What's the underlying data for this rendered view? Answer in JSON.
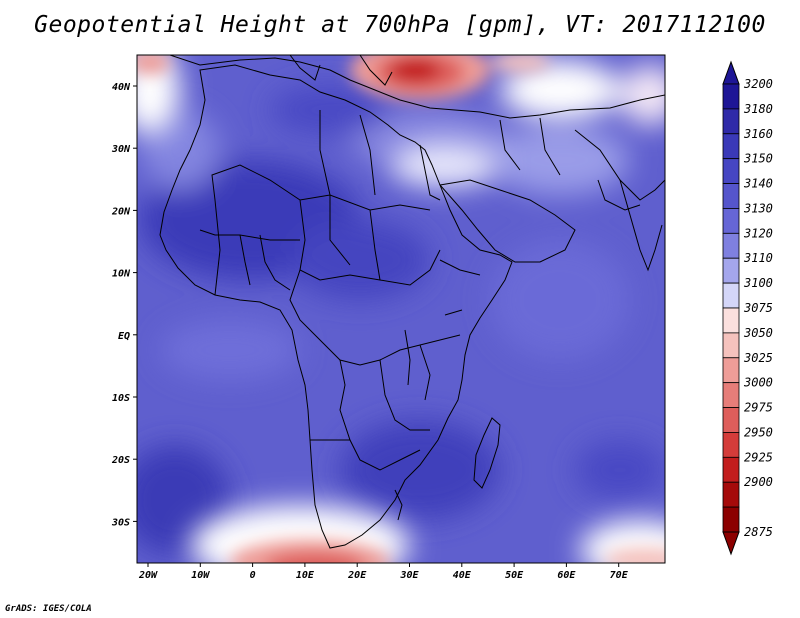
{
  "title": "Geopotential Height at 700hPa [gpm], VT: 2017112100",
  "credit": "GrADS: IGES/COLA",
  "map": {
    "region": "Africa",
    "lon_ticks": [
      "20W",
      "10W",
      "0",
      "10E",
      "20E",
      "30E",
      "40E",
      "50E",
      "60E",
      "70E"
    ],
    "lat_ticks": [
      "40N",
      "30N",
      "20N",
      "10N",
      "EQ",
      "10S",
      "20S",
      "30S"
    ]
  },
  "colorbar": {
    "levels": [
      "3200",
      "3180",
      "3160",
      "3150",
      "3140",
      "3130",
      "3120",
      "3110",
      "3100",
      "3075",
      "3050",
      "3025",
      "3000",
      "2975",
      "2950",
      "2925",
      "2900",
      "2875"
    ],
    "colors": [
      "#1e1696",
      "#2f2aa8",
      "#3a39b8",
      "#4646c3",
      "#5555cc",
      "#6666d6",
      "#7f80e0",
      "#a4a6ec",
      "#d4d6f8",
      "#fbe0de",
      "#f5c2bd",
      "#ee9d98",
      "#e67d79",
      "#de5e5b",
      "#d43c3a",
      "#c21d1d",
      "#a50a0a",
      "#8c0000"
    ]
  },
  "colors": {
    "background": "#5d5dcd",
    "land_lines": "#000000"
  }
}
